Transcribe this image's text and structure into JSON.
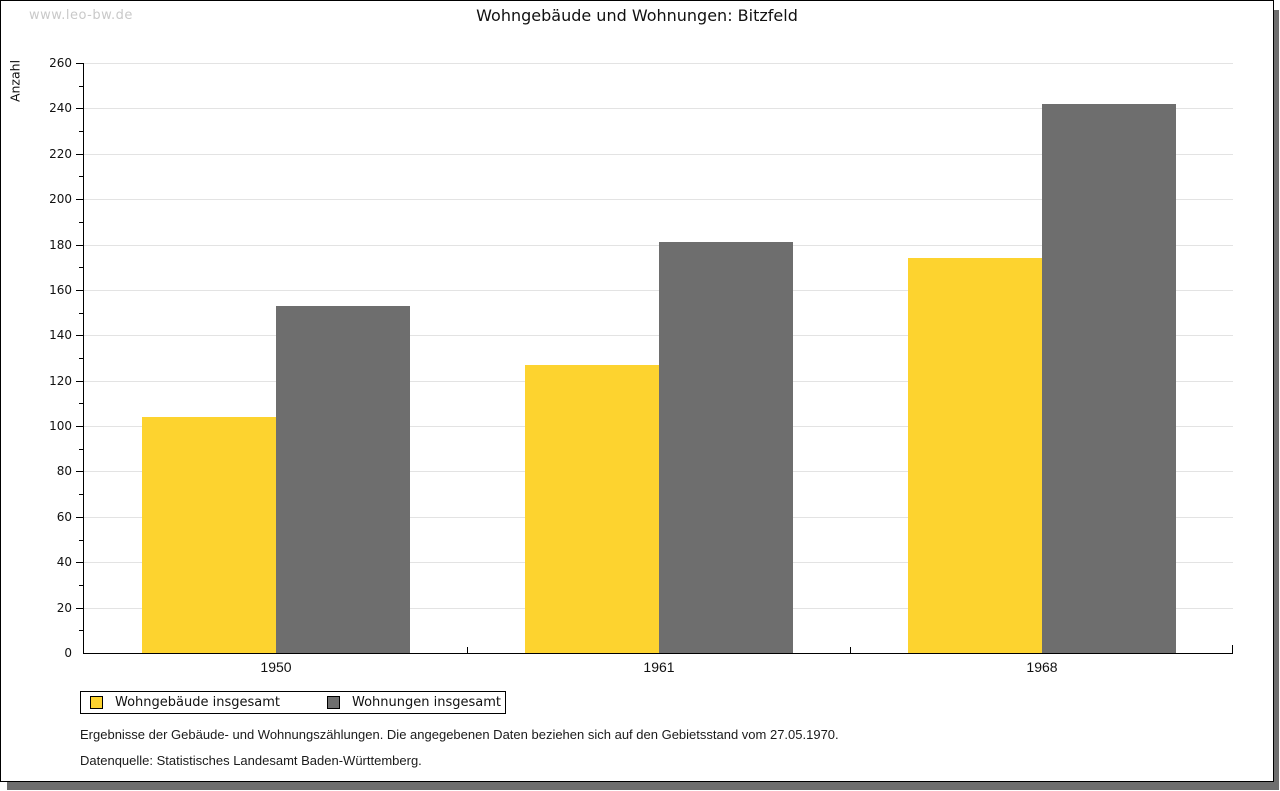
{
  "watermark": "www.leo-bw.de",
  "chart_data": {
    "type": "bar",
    "title": "Wohngebäude und Wohnungen: Bitzfeld",
    "ylabel": "Anzahl",
    "xlabel": "",
    "categories": [
      "1950",
      "1961",
      "1968"
    ],
    "series": [
      {
        "name": "Wohngebäude insgesamt",
        "color": "#fdd32f",
        "values": [
          104,
          127,
          174
        ]
      },
      {
        "name": "Wohnungen insgesamt",
        "color": "#6e6e6e",
        "values": [
          153,
          181,
          242
        ]
      }
    ],
    "ylim": [
      0,
      260
    ],
    "ytick_major": 20,
    "ytick_minor": 10,
    "grid": "horizontal-major",
    "legend_position": "bottom-left"
  },
  "footnotes": [
    "Ergebnisse der Gebäude- und Wohnungszählungen. Die angegebenen Daten beziehen sich auf den Gebietsstand vom 27.05.1970.",
    "Datenquelle: Statistisches Landesamt Baden-Württemberg."
  ],
  "colors": {
    "bar_yellow": "#fdd32f",
    "bar_gray": "#6e6e6e",
    "gridline": "#e3e3e3",
    "watermark": "#c9c9c9",
    "border": "#000000",
    "shadow": "#6e6e6e"
  }
}
